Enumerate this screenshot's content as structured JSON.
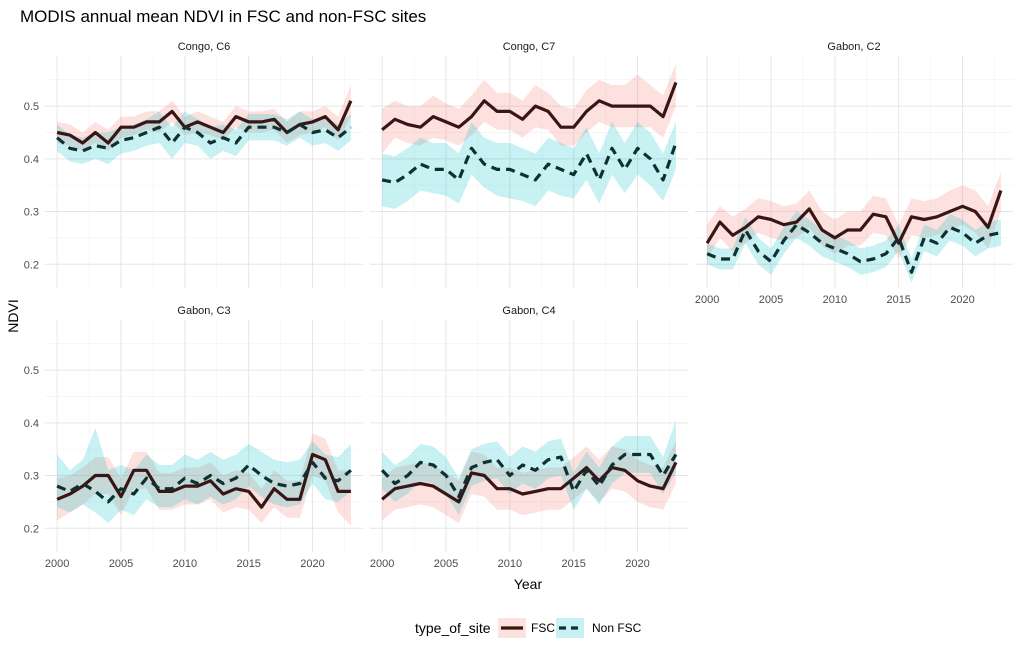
{
  "chart_data": {
    "type": "line",
    "title": "MODIS annual mean NDVI in FSC and non-FSC sites",
    "xlabel": "Year",
    "ylabel": "NDVI",
    "xlim": [
      1999.05,
      2023.95
    ],
    "ylim": [
      0.155,
      0.595
    ],
    "x_ticks": [
      2000,
      2005,
      2010,
      2015,
      2020
    ],
    "y_ticks": [
      0.2,
      0.3,
      0.4,
      0.5
    ],
    "x_tick_labels": [
      "2000",
      "2005",
      "2010",
      "2015",
      "2020"
    ],
    "y_tick_labels": [
      "0.2",
      "0.3",
      "0.4",
      "0.5"
    ],
    "grid": true,
    "legend": {
      "title": "type_of_site",
      "position": "bottom",
      "entries": [
        {
          "name": "FSC",
          "line": "#3a1515",
          "ribbon": "#f8766d",
          "dash": "solid"
        },
        {
          "name": "Non FSC",
          "line": "#0f3030",
          "ribbon": "#00bfc4",
          "dash": "dashed"
        }
      ]
    },
    "years": [
      2000,
      2001,
      2002,
      2003,
      2004,
      2005,
      2006,
      2007,
      2008,
      2009,
      2010,
      2011,
      2012,
      2013,
      2014,
      2015,
      2016,
      2017,
      2018,
      2019,
      2020,
      2021,
      2022,
      2023
    ],
    "panels": [
      {
        "title": "Congo, C6",
        "series": [
          {
            "name": "FSC",
            "values": [
              0.45,
              0.445,
              0.43,
              0.45,
              0.43,
              0.46,
              0.46,
              0.47,
              0.47,
              0.49,
              0.46,
              0.47,
              0.46,
              0.45,
              0.48,
              0.47,
              0.47,
              0.475,
              0.45,
              0.465,
              0.47,
              0.48,
              0.455,
              0.51
            ],
            "lower": [
              0.43,
              0.425,
              0.415,
              0.43,
              0.415,
              0.44,
              0.445,
              0.455,
              0.45,
              0.47,
              0.445,
              0.45,
              0.445,
              0.435,
              0.46,
              0.45,
              0.45,
              0.455,
              0.43,
              0.445,
              0.45,
              0.46,
              0.435,
              0.48
            ],
            "upper": [
              0.47,
              0.465,
              0.45,
              0.47,
              0.455,
              0.48,
              0.48,
              0.49,
              0.49,
              0.51,
              0.48,
              0.49,
              0.48,
              0.47,
              0.5,
              0.49,
              0.49,
              0.495,
              0.47,
              0.49,
              0.49,
              0.5,
              0.48,
              0.54
            ]
          },
          {
            "name": "Non FSC",
            "values": [
              0.44,
              0.42,
              0.415,
              0.425,
              0.42,
              0.435,
              0.44,
              0.45,
              0.46,
              0.43,
              0.46,
              0.45,
              0.43,
              0.44,
              0.43,
              0.46,
              0.46,
              0.46,
              0.45,
              0.465,
              0.45,
              0.455,
              0.44,
              0.46
            ],
            "lower": [
              0.415,
              0.395,
              0.39,
              0.4,
              0.39,
              0.41,
              0.415,
              0.425,
              0.43,
              0.4,
              0.43,
              0.425,
              0.4,
              0.415,
              0.405,
              0.435,
              0.435,
              0.435,
              0.425,
              0.44,
              0.425,
              0.43,
              0.415,
              0.435
            ],
            "upper": [
              0.465,
              0.445,
              0.44,
              0.45,
              0.45,
              0.46,
              0.465,
              0.475,
              0.49,
              0.46,
              0.49,
              0.475,
              0.46,
              0.465,
              0.455,
              0.485,
              0.485,
              0.485,
              0.475,
              0.49,
              0.475,
              0.48,
              0.465,
              0.485
            ]
          }
        ]
      },
      {
        "title": "Congo, C7",
        "series": [
          {
            "name": "FSC",
            "values": [
              0.455,
              0.475,
              0.465,
              0.46,
              0.48,
              0.47,
              0.46,
              0.48,
              0.51,
              0.49,
              0.49,
              0.475,
              0.5,
              0.49,
              0.46,
              0.46,
              0.49,
              0.51,
              0.5,
              0.5,
              0.5,
              0.5,
              0.48,
              0.545
            ],
            "lower": [
              0.41,
              0.44,
              0.43,
              0.425,
              0.44,
              0.435,
              0.425,
              0.445,
              0.47,
              0.455,
              0.455,
              0.44,
              0.46,
              0.455,
              0.425,
              0.425,
              0.45,
              0.47,
              0.46,
              0.46,
              0.46,
              0.46,
              0.44,
              0.5
            ],
            "upper": [
              0.495,
              0.51,
              0.5,
              0.5,
              0.52,
              0.505,
              0.495,
              0.52,
              0.55,
              0.525,
              0.525,
              0.51,
              0.54,
              0.525,
              0.5,
              0.495,
              0.53,
              0.55,
              0.54,
              0.54,
              0.56,
              0.54,
              0.52,
              0.58
            ]
          },
          {
            "name": "Non FSC",
            "values": [
              0.36,
              0.355,
              0.37,
              0.39,
              0.38,
              0.38,
              0.36,
              0.42,
              0.39,
              0.38,
              0.38,
              0.37,
              0.36,
              0.39,
              0.38,
              0.37,
              0.41,
              0.36,
              0.42,
              0.38,
              0.42,
              0.4,
              0.36,
              0.43
            ],
            "lower": [
              0.31,
              0.305,
              0.32,
              0.34,
              0.335,
              0.33,
              0.315,
              0.37,
              0.345,
              0.33,
              0.325,
              0.32,
              0.31,
              0.34,
              0.33,
              0.325,
              0.36,
              0.315,
              0.37,
              0.335,
              0.37,
              0.35,
              0.32,
              0.38
            ],
            "upper": [
              0.41,
              0.405,
              0.42,
              0.44,
              0.43,
              0.43,
              0.41,
              0.47,
              0.44,
              0.43,
              0.43,
              0.42,
              0.41,
              0.44,
              0.43,
              0.42,
              0.46,
              0.41,
              0.47,
              0.43,
              0.47,
              0.45,
              0.41,
              0.47
            ]
          }
        ]
      },
      {
        "title": "Gabon, C2",
        "series": [
          {
            "name": "FSC",
            "values": [
              0.24,
              0.28,
              0.255,
              0.27,
              0.29,
              0.285,
              0.275,
              0.28,
              0.305,
              0.265,
              0.25,
              0.265,
              0.265,
              0.295,
              0.29,
              0.24,
              0.29,
              0.285,
              0.29,
              0.3,
              0.31,
              0.3,
              0.27,
              0.34
            ],
            "lower": [
              0.21,
              0.25,
              0.225,
              0.24,
              0.26,
              0.25,
              0.245,
              0.25,
              0.27,
              0.235,
              0.22,
              0.235,
              0.235,
              0.26,
              0.255,
              0.21,
              0.255,
              0.25,
              0.255,
              0.265,
              0.275,
              0.26,
              0.23,
              0.3
            ],
            "upper": [
              0.275,
              0.31,
              0.29,
              0.305,
              0.325,
              0.32,
              0.31,
              0.315,
              0.34,
              0.3,
              0.285,
              0.3,
              0.3,
              0.33,
              0.325,
              0.275,
              0.325,
              0.32,
              0.325,
              0.34,
              0.35,
              0.34,
              0.31,
              0.375
            ]
          },
          {
            "name": "Non FSC",
            "values": [
              0.22,
              0.21,
              0.21,
              0.265,
              0.225,
              0.205,
              0.245,
              0.275,
              0.26,
              0.24,
              0.23,
              0.22,
              0.205,
              0.21,
              0.22,
              0.25,
              0.185,
              0.25,
              0.24,
              0.27,
              0.26,
              0.24,
              0.255,
              0.26
            ],
            "lower": [
              0.2,
              0.19,
              0.19,
              0.24,
              0.2,
              0.18,
              0.22,
              0.25,
              0.235,
              0.215,
              0.205,
              0.195,
              0.18,
              0.185,
              0.195,
              0.225,
              0.165,
              0.225,
              0.215,
              0.245,
              0.235,
              0.215,
              0.23,
              0.235
            ],
            "upper": [
              0.24,
              0.23,
              0.23,
              0.29,
              0.25,
              0.23,
              0.27,
              0.3,
              0.285,
              0.265,
              0.255,
              0.245,
              0.23,
              0.235,
              0.245,
              0.275,
              0.21,
              0.275,
              0.265,
              0.295,
              0.285,
              0.265,
              0.28,
              0.285
            ]
          }
        ]
      },
      {
        "title": "Gabon, C3",
        "series": [
          {
            "name": "FSC",
            "values": [
              0.255,
              0.265,
              0.28,
              0.3,
              0.3,
              0.26,
              0.31,
              0.31,
              0.27,
              0.27,
              0.28,
              0.28,
              0.29,
              0.265,
              0.275,
              0.27,
              0.24,
              0.275,
              0.255,
              0.255,
              0.34,
              0.33,
              0.27,
              0.27
            ],
            "lower": [
              0.215,
              0.23,
              0.245,
              0.265,
              0.265,
              0.225,
              0.275,
              0.275,
              0.235,
              0.235,
              0.245,
              0.245,
              0.255,
              0.23,
              0.24,
              0.235,
              0.21,
              0.24,
              0.22,
              0.22,
              0.3,
              0.29,
              0.23,
              0.205
            ],
            "upper": [
              0.295,
              0.3,
              0.315,
              0.335,
              0.335,
              0.295,
              0.345,
              0.345,
              0.305,
              0.305,
              0.315,
              0.315,
              0.325,
              0.3,
              0.31,
              0.305,
              0.275,
              0.31,
              0.29,
              0.29,
              0.38,
              0.37,
              0.31,
              0.31
            ]
          },
          {
            "name": "Non FSC",
            "values": [
              0.28,
              0.27,
              0.285,
              0.27,
              0.25,
              0.275,
              0.265,
              0.295,
              0.275,
              0.275,
              0.295,
              0.285,
              0.3,
              0.285,
              0.295,
              0.32,
              0.3,
              0.285,
              0.28,
              0.285,
              0.325,
              0.295,
              0.29,
              0.31
            ],
            "lower": [
              0.24,
              0.23,
              0.245,
              0.23,
              0.21,
              0.235,
              0.225,
              0.255,
              0.24,
              0.24,
              0.255,
              0.245,
              0.26,
              0.245,
              0.255,
              0.28,
              0.26,
              0.245,
              0.24,
              0.245,
              0.285,
              0.255,
              0.25,
              0.27
            ],
            "upper": [
              0.34,
              0.31,
              0.33,
              0.39,
              0.31,
              0.32,
              0.31,
              0.34,
              0.32,
              0.32,
              0.34,
              0.33,
              0.345,
              0.33,
              0.34,
              0.36,
              0.345,
              0.33,
              0.325,
              0.33,
              0.365,
              0.34,
              0.335,
              0.36
            ]
          }
        ]
      },
      {
        "title": "Gabon, C4",
        "series": [
          {
            "name": "FSC",
            "values": [
              0.255,
              0.275,
              0.28,
              0.285,
              0.28,
              0.265,
              0.25,
              0.305,
              0.3,
              0.275,
              0.275,
              0.265,
              0.27,
              0.275,
              0.275,
              0.295,
              0.315,
              0.29,
              0.315,
              0.31,
              0.29,
              0.28,
              0.275,
              0.325
            ],
            "lower": [
              0.215,
              0.235,
              0.24,
              0.245,
              0.24,
              0.225,
              0.21,
              0.265,
              0.26,
              0.235,
              0.235,
              0.225,
              0.23,
              0.235,
              0.235,
              0.255,
              0.275,
              0.25,
              0.275,
              0.27,
              0.25,
              0.24,
              0.235,
              0.285
            ],
            "upper": [
              0.295,
              0.315,
              0.32,
              0.325,
              0.32,
              0.305,
              0.29,
              0.345,
              0.34,
              0.315,
              0.315,
              0.305,
              0.31,
              0.315,
              0.315,
              0.335,
              0.355,
              0.33,
              0.355,
              0.35,
              0.33,
              0.32,
              0.315,
              0.365
            ]
          },
          {
            "name": "Non FSC",
            "values": [
              0.31,
              0.285,
              0.3,
              0.325,
              0.32,
              0.3,
              0.26,
              0.315,
              0.325,
              0.33,
              0.3,
              0.32,
              0.31,
              0.33,
              0.335,
              0.27,
              0.31,
              0.28,
              0.32,
              0.34,
              0.34,
              0.34,
              0.3,
              0.34
            ],
            "lower": [
              0.275,
              0.25,
              0.265,
              0.29,
              0.285,
              0.265,
              0.225,
              0.28,
              0.29,
              0.295,
              0.265,
              0.285,
              0.275,
              0.295,
              0.3,
              0.235,
              0.275,
              0.245,
              0.285,
              0.305,
              0.305,
              0.305,
              0.265,
              0.305
            ],
            "upper": [
              0.345,
              0.32,
              0.335,
              0.36,
              0.355,
              0.335,
              0.295,
              0.35,
              0.36,
              0.365,
              0.335,
              0.355,
              0.345,
              0.365,
              0.37,
              0.305,
              0.345,
              0.315,
              0.355,
              0.375,
              0.375,
              0.375,
              0.335,
              0.405
            ]
          }
        ]
      }
    ]
  }
}
